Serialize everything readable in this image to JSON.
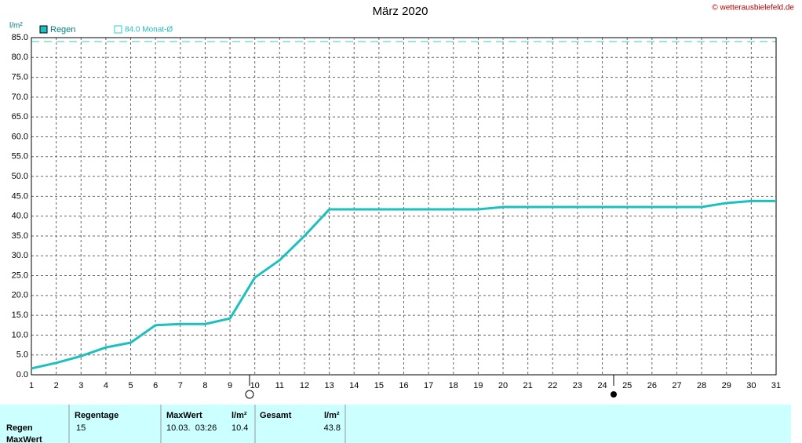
{
  "chart_data": {
    "type": "line",
    "title": "März 2020",
    "source": "© wetterausbielefeld.de",
    "y_label": "l/m²",
    "x": [
      1,
      2,
      3,
      4,
      5,
      6,
      7,
      8,
      9,
      10,
      11,
      12,
      13,
      14,
      15,
      16,
      17,
      18,
      19,
      20,
      21,
      22,
      23,
      24,
      25,
      26,
      27,
      28,
      29,
      30,
      31
    ],
    "series": [
      {
        "name": "Regen",
        "color": "#1ebfbf",
        "values": [
          1.6,
          3.0,
          4.7,
          6.9,
          8.1,
          12.5,
          12.8,
          12.8,
          14.2,
          24.5,
          28.9,
          35.0,
          41.7,
          41.7,
          41.7,
          41.7,
          41.7,
          41.7,
          41.7,
          42.3,
          42.3,
          42.3,
          42.3,
          42.3,
          42.3,
          42.3,
          42.3,
          42.3,
          43.3,
          43.8,
          43.8
        ]
      }
    ],
    "reference_line": {
      "value": 84,
      "label": "84.0 Monat-Ø",
      "color": "#33cccc"
    },
    "xlim": [
      1,
      31
    ],
    "xticks": [
      1,
      2,
      3,
      4,
      5,
      6,
      7,
      8,
      9,
      10,
      11,
      12,
      13,
      14,
      15,
      16,
      17,
      18,
      19,
      20,
      21,
      22,
      23,
      24,
      25,
      26,
      27,
      28,
      29,
      30,
      31
    ],
    "ylim": [
      0,
      85
    ],
    "yticks": [
      {
        "value": 0,
        "label": "0.0"
      },
      {
        "value": 5,
        "label": "5.0"
      },
      {
        "value": 10,
        "label": "10.0"
      },
      {
        "value": 15,
        "label": "15.0"
      },
      {
        "value": 20,
        "label": "20.0"
      },
      {
        "value": 25,
        "label": "25.0"
      },
      {
        "value": 30,
        "label": "30.0"
      },
      {
        "value": 35,
        "label": "35.0"
      },
      {
        "value": 40,
        "label": "40.0"
      },
      {
        "value": 45,
        "label": "45.0"
      },
      {
        "value": 50,
        "label": "50.0"
      },
      {
        "value": 55,
        "label": "55.0"
      },
      {
        "value": 60,
        "label": "60.0"
      },
      {
        "value": 65,
        "label": "65.0"
      },
      {
        "value": 70,
        "label": "70.0"
      },
      {
        "value": 75,
        "label": "75.0"
      },
      {
        "value": 80,
        "label": "80.0"
      },
      {
        "value": 85,
        "label": "85.0"
      }
    ],
    "grid": true
  },
  "table": {
    "columns": [
      "Regentage",
      "MaxWert",
      "l/m²",
      "Gesamt",
      "l/m²"
    ],
    "rows": [
      [
        "Regen",
        "15",
        "10.03.  03:26",
        "10.4",
        "43.8"
      ],
      [
        "MaxWert"
      ]
    ]
  }
}
